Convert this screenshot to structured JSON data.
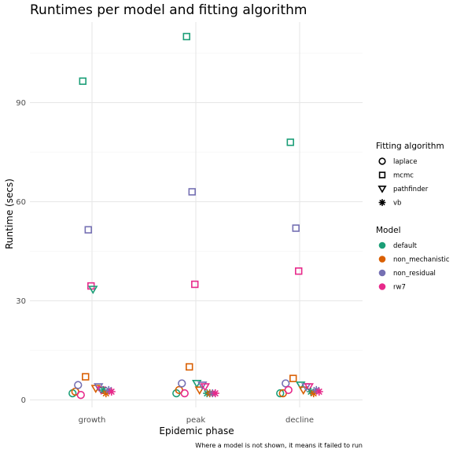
{
  "chart_data": {
    "type": "scatter",
    "title": "Runtimes per model and fitting algorithm",
    "xlabel": "Epidemic phase",
    "ylabel": "Runtime (secs)",
    "caption": "Where a model is not shown, it means it failed to run",
    "categories": [
      "growth",
      "peak",
      "decline"
    ],
    "ylim": [
      -3,
      115
    ],
    "yticks": [
      0,
      30,
      60,
      90
    ],
    "grid": true,
    "legend_placement": "right",
    "legend_algorithm": {
      "title": "Fitting algorithm",
      "items": [
        {
          "key": "laplace",
          "label": "laplace",
          "shape": "circle"
        },
        {
          "key": "mcmc",
          "label": "mcmc",
          "shape": "square"
        },
        {
          "key": "pathfinder",
          "label": "pathfinder",
          "shape": "triangle-down"
        },
        {
          "key": "vb",
          "label": "vb",
          "shape": "asterisk"
        }
      ]
    },
    "legend_model": {
      "title": "Model",
      "items": [
        {
          "key": "default",
          "label": "default",
          "color": "#1b9e77"
        },
        {
          "key": "non_mechanistic",
          "label": "non_mechanistic",
          "color": "#d95f02"
        },
        {
          "key": "non_residual",
          "label": "non_residual",
          "color": "#7570b3"
        },
        {
          "key": "rw7",
          "label": "rw7",
          "color": "#e7298a"
        }
      ]
    },
    "points": [
      {
        "phase": "growth",
        "algorithm": "laplace",
        "model": "default",
        "y": 2.0
      },
      {
        "phase": "growth",
        "algorithm": "laplace",
        "model": "non_mechanistic",
        "y": 2.5
      },
      {
        "phase": "growth",
        "algorithm": "laplace",
        "model": "non_residual",
        "y": 4.5
      },
      {
        "phase": "growth",
        "algorithm": "laplace",
        "model": "rw7",
        "y": 1.5
      },
      {
        "phase": "growth",
        "algorithm": "mcmc",
        "model": "default",
        "y": 96.5
      },
      {
        "phase": "growth",
        "algorithm": "mcmc",
        "model": "non_mechanistic",
        "y": 7.0
      },
      {
        "phase": "growth",
        "algorithm": "mcmc",
        "model": "non_residual",
        "y": 51.5
      },
      {
        "phase": "growth",
        "algorithm": "mcmc",
        "model": "rw7",
        "y": 34.5
      },
      {
        "phase": "growth",
        "algorithm": "pathfinder",
        "model": "default",
        "y": 33.5
      },
      {
        "phase": "growth",
        "algorithm": "pathfinder",
        "model": "non_mechanistic",
        "y": 3.5
      },
      {
        "phase": "growth",
        "algorithm": "pathfinder",
        "model": "non_residual",
        "y": 4.0
      },
      {
        "phase": "growth",
        "algorithm": "pathfinder",
        "model": "rw7",
        "y": 3.0
      },
      {
        "phase": "growth",
        "algorithm": "vb",
        "model": "default",
        "y": 3.0
      },
      {
        "phase": "growth",
        "algorithm": "vb",
        "model": "non_mechanistic",
        "y": 2.0
      },
      {
        "phase": "growth",
        "algorithm": "vb",
        "model": "non_residual",
        "y": 3.0
      },
      {
        "phase": "growth",
        "algorithm": "vb",
        "model": "rw7",
        "y": 2.5
      },
      {
        "phase": "peak",
        "algorithm": "laplace",
        "model": "default",
        "y": 2.0
      },
      {
        "phase": "peak",
        "algorithm": "laplace",
        "model": "non_mechanistic",
        "y": 3.0
      },
      {
        "phase": "peak",
        "algorithm": "laplace",
        "model": "non_residual",
        "y": 5.0
      },
      {
        "phase": "peak",
        "algorithm": "laplace",
        "model": "rw7",
        "y": 2.0
      },
      {
        "phase": "peak",
        "algorithm": "mcmc",
        "model": "default",
        "y": 110.0
      },
      {
        "phase": "peak",
        "algorithm": "mcmc",
        "model": "non_mechanistic",
        "y": 10.0
      },
      {
        "phase": "peak",
        "algorithm": "mcmc",
        "model": "non_residual",
        "y": 63.0
      },
      {
        "phase": "peak",
        "algorithm": "mcmc",
        "model": "rw7",
        "y": 35.0
      },
      {
        "phase": "peak",
        "algorithm": "pathfinder",
        "model": "default",
        "y": 5.0
      },
      {
        "phase": "peak",
        "algorithm": "pathfinder",
        "model": "non_mechanistic",
        "y": 3.0
      },
      {
        "phase": "peak",
        "algorithm": "pathfinder",
        "model": "non_residual",
        "y": 4.5
      },
      {
        "phase": "peak",
        "algorithm": "pathfinder",
        "model": "rw7",
        "y": 4.0
      },
      {
        "phase": "peak",
        "algorithm": "vb",
        "model": "default",
        "y": 2.0
      },
      {
        "phase": "peak",
        "algorithm": "vb",
        "model": "non_mechanistic",
        "y": 2.0
      },
      {
        "phase": "peak",
        "algorithm": "vb",
        "model": "non_residual",
        "y": 2.0
      },
      {
        "phase": "peak",
        "algorithm": "vb",
        "model": "rw7",
        "y": 2.0
      },
      {
        "phase": "decline",
        "algorithm": "laplace",
        "model": "default",
        "y": 2.0
      },
      {
        "phase": "decline",
        "algorithm": "laplace",
        "model": "non_mechanistic",
        "y": 2.0
      },
      {
        "phase": "decline",
        "algorithm": "laplace",
        "model": "non_residual",
        "y": 5.0
      },
      {
        "phase": "decline",
        "algorithm": "laplace",
        "model": "rw7",
        "y": 3.0
      },
      {
        "phase": "decline",
        "algorithm": "mcmc",
        "model": "default",
        "y": 78.0
      },
      {
        "phase": "decline",
        "algorithm": "mcmc",
        "model": "non_mechanistic",
        "y": 6.5
      },
      {
        "phase": "decline",
        "algorithm": "mcmc",
        "model": "non_residual",
        "y": 52.0
      },
      {
        "phase": "decline",
        "algorithm": "mcmc",
        "model": "rw7",
        "y": 39.0
      },
      {
        "phase": "decline",
        "algorithm": "pathfinder",
        "model": "default",
        "y": 4.5
      },
      {
        "phase": "decline",
        "algorithm": "pathfinder",
        "model": "non_mechanistic",
        "y": 3.0
      },
      {
        "phase": "decline",
        "algorithm": "pathfinder",
        "model": "non_residual",
        "y": 4.0
      },
      {
        "phase": "decline",
        "algorithm": "pathfinder",
        "model": "rw7",
        "y": 4.0
      },
      {
        "phase": "decline",
        "algorithm": "vb",
        "model": "default",
        "y": 2.5
      },
      {
        "phase": "decline",
        "algorithm": "vb",
        "model": "non_mechanistic",
        "y": 2.0
      },
      {
        "phase": "decline",
        "algorithm": "vb",
        "model": "non_residual",
        "y": 3.0
      },
      {
        "phase": "decline",
        "algorithm": "vb",
        "model": "rw7",
        "y": 2.5
      }
    ]
  }
}
